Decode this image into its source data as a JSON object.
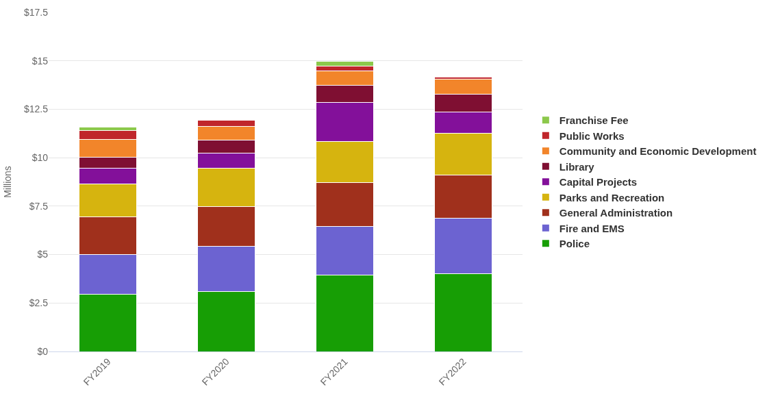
{
  "chart_data": {
    "type": "bar",
    "stacked": true,
    "ylabel": "Millions",
    "categories": [
      "FY2019",
      "FY2020",
      "FY2021",
      "FY2022"
    ],
    "series": [
      {
        "name": "Police",
        "color": "#179e05",
        "values": [
          2.95,
          3.09,
          3.94,
          4.0
        ]
      },
      {
        "name": "Fire and EMS",
        "color": "#6c63d1",
        "values": [
          2.07,
          2.35,
          2.51,
          2.89
        ]
      },
      {
        "name": "General Administration",
        "color": "#a0301c",
        "values": [
          1.92,
          2.03,
          2.28,
          2.22
        ]
      },
      {
        "name": "Parks and Recreation",
        "color": "#d6b40f",
        "values": [
          1.72,
          2.0,
          2.11,
          2.14
        ]
      },
      {
        "name": "Capital Projects",
        "color": "#83109a",
        "values": [
          0.81,
          0.77,
          2.0,
          1.11
        ]
      },
      {
        "name": "Library",
        "color": "#7f0f32",
        "values": [
          0.56,
          0.67,
          0.88,
          0.9
        ]
      },
      {
        "name": "Community and Economic Development",
        "color": "#f2852a",
        "values": [
          0.91,
          0.7,
          0.74,
          0.79
        ]
      },
      {
        "name": "Public Works",
        "color": "#c0262b",
        "values": [
          0.46,
          0.32,
          0.26,
          0.1
        ]
      },
      {
        "name": "Franchise Fee",
        "color": "#8cc84b",
        "values": [
          0.17,
          null,
          0.27,
          null
        ]
      }
    ],
    "ylim": [
      0,
      17.5
    ],
    "yticks": [
      {
        "value": 0,
        "label": "$0"
      },
      {
        "value": 2.5,
        "label": "$2.5"
      },
      {
        "value": 5,
        "label": "$5"
      },
      {
        "value": 7.5,
        "label": "$7.5"
      },
      {
        "value": 10,
        "label": "$10"
      },
      {
        "value": 12.5,
        "label": "$12.5"
      },
      {
        "value": 15,
        "label": "$15"
      },
      {
        "value": 17.5,
        "label": "$17.5"
      }
    ],
    "grid": "y",
    "legend": "right"
  }
}
